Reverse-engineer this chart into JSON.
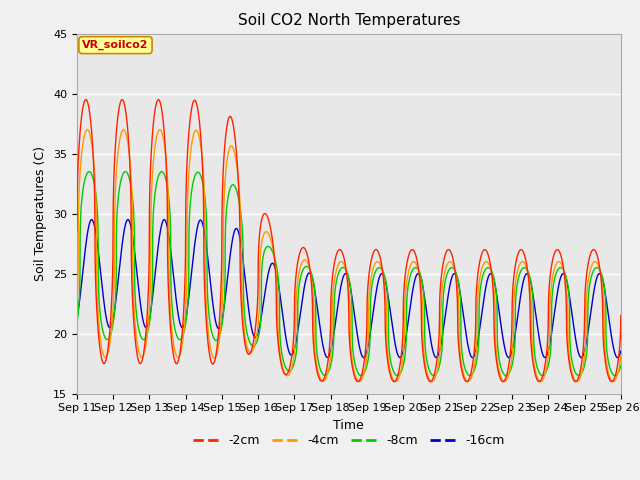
{
  "title": "Soil CO2 North Temperatures",
  "xlabel": "Time",
  "ylabel": "Soil Temperatures (C)",
  "ylim": [
    15,
    45
  ],
  "yticks": [
    15,
    20,
    25,
    30,
    35,
    40,
    45
  ],
  "xlim_days": [
    11,
    26
  ],
  "xtick_days": [
    11,
    12,
    13,
    14,
    15,
    16,
    17,
    18,
    19,
    20,
    21,
    22,
    23,
    24,
    25,
    26
  ],
  "xtick_labels": [
    "Sep 11",
    "Sep 12",
    "Sep 13",
    "Sep 14",
    "Sep 15",
    "Sep 16",
    "Sep 17",
    "Sep 18",
    "Sep 19",
    "Sep 20",
    "Sep 21",
    "Sep 22",
    "Sep 23",
    "Sep 24",
    "Sep 25",
    "Sep 26"
  ],
  "series_colors": [
    "#FF2200",
    "#FF9900",
    "#00CC00",
    "#0000CC"
  ],
  "series_labels": [
    "-2cm",
    "-4cm",
    "-8cm",
    "-16cm"
  ],
  "annotation_text": "VR_soilco2",
  "annotation_color": "#CC0000",
  "annotation_bg": "#FFFF99",
  "annotation_border": "#CC8800",
  "plot_bg_color": "#E8E8E8",
  "fig_bg_color": "#F0F0F0",
  "grid_color": "#FFFFFF",
  "title_fontsize": 11,
  "label_fontsize": 9,
  "tick_fontsize": 8
}
